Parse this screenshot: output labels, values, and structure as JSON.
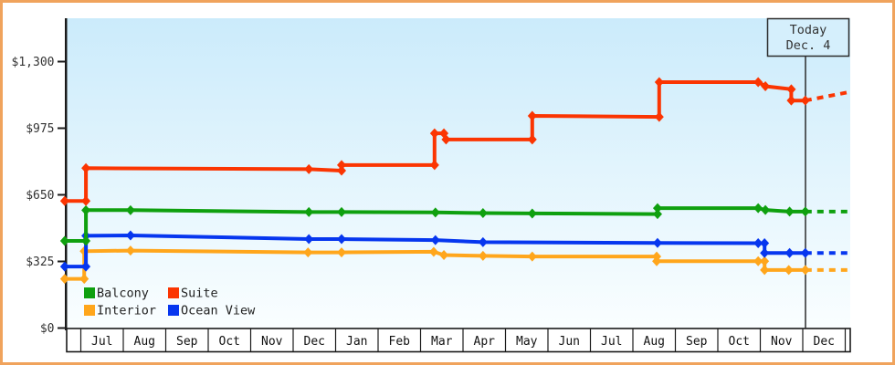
{
  "window": {
    "frame_border_color": "#F0A35C",
    "background_color": "#FFFFFF"
  },
  "chart_data": {
    "type": "line",
    "title": "",
    "description": "Price history step-line chart of cruise cabin categories over 18 months with dashed forecast after today marker",
    "x_axis": {
      "months": [
        "Jul",
        "Aug",
        "Sep",
        "Oct",
        "Nov",
        "Dec",
        "Jan",
        "Feb",
        "Mar",
        "Apr",
        "May",
        "Jun",
        "Jul",
        "Aug",
        "Sep",
        "Oct",
        "Nov",
        "Dec"
      ]
    },
    "y_axis": {
      "ticks": [
        {
          "value": 0,
          "label": "$0"
        },
        {
          "value": 325,
          "label": "$325"
        },
        {
          "value": 650,
          "label": "$650"
        },
        {
          "value": 975,
          "label": "$975"
        },
        {
          "value": 1300,
          "label": "$1,300"
        }
      ],
      "range": [
        0,
        1510
      ],
      "grid": false
    },
    "today": {
      "line1": "Today",
      "line2": "Dec. 4",
      "month_offset": 17.06
    },
    "plot_bg_top": "#CBEBFB",
    "plot_bg_bottom": "#FAFEFF",
    "series": [
      {
        "name": "Interior",
        "color": "#FFA61C",
        "points": [
          [
            -0.38,
            240
          ],
          [
            0.08,
            240
          ],
          [
            0.08,
            375
          ],
          [
            1.17,
            378
          ],
          [
            5.35,
            369
          ],
          [
            6.14,
            369
          ],
          [
            8.31,
            372
          ],
          [
            8.55,
            356
          ],
          [
            9.47,
            352
          ],
          [
            10.63,
            349
          ],
          [
            13.56,
            349
          ],
          [
            13.56,
            326
          ],
          [
            15.95,
            326
          ],
          [
            16.1,
            326
          ],
          [
            16.1,
            283
          ],
          [
            16.67,
            283
          ],
          [
            17.06,
            283
          ]
        ],
        "forecast": [
          [
            17.06,
            283
          ],
          [
            18.06,
            283
          ]
        ]
      },
      {
        "name": "Ocean View",
        "color": "#0636EF",
        "points": [
          [
            -0.38,
            300
          ],
          [
            0.12,
            300
          ],
          [
            0.12,
            450
          ],
          [
            1.17,
            452
          ],
          [
            5.37,
            434
          ],
          [
            6.14,
            434
          ],
          [
            8.35,
            429
          ],
          [
            9.47,
            419
          ],
          [
            13.58,
            415
          ],
          [
            15.95,
            414
          ],
          [
            16.1,
            414
          ],
          [
            16.1,
            366
          ],
          [
            16.69,
            366
          ],
          [
            17.06,
            366
          ]
        ],
        "forecast": [
          [
            17.06,
            366
          ],
          [
            18.06,
            366
          ]
        ]
      },
      {
        "name": "Balcony",
        "color": "#0FA00F",
        "points": [
          [
            -0.38,
            425
          ],
          [
            0.12,
            425
          ],
          [
            0.12,
            575
          ],
          [
            1.17,
            575
          ],
          [
            5.37,
            566
          ],
          [
            6.14,
            566
          ],
          [
            8.35,
            564
          ],
          [
            9.47,
            561
          ],
          [
            10.63,
            559
          ],
          [
            13.58,
            556
          ],
          [
            13.58,
            585
          ],
          [
            15.95,
            585
          ],
          [
            16.12,
            576
          ],
          [
            16.69,
            568
          ],
          [
            17.06,
            568
          ]
        ],
        "forecast": [
          [
            17.06,
            568
          ],
          [
            18.06,
            568
          ]
        ]
      },
      {
        "name": "Suite",
        "color": "#FB3502",
        "points": [
          [
            -0.38,
            620
          ],
          [
            0.12,
            620
          ],
          [
            0.12,
            780
          ],
          [
            5.37,
            775
          ],
          [
            6.14,
            768
          ],
          [
            6.14,
            795
          ],
          [
            8.33,
            795
          ],
          [
            8.33,
            950
          ],
          [
            8.55,
            950
          ],
          [
            8.6,
            920
          ],
          [
            10.63,
            920
          ],
          [
            10.63,
            1035
          ],
          [
            13.62,
            1030
          ],
          [
            13.62,
            1200
          ],
          [
            15.95,
            1200
          ],
          [
            16.12,
            1180
          ],
          [
            16.73,
            1165
          ],
          [
            16.73,
            1110
          ],
          [
            17.06,
            1110
          ]
        ],
        "forecast": [
          [
            17.06,
            1110
          ],
          [
            18.06,
            1150
          ]
        ]
      }
    ]
  },
  "legend": {
    "items": [
      {
        "label": "Balcony",
        "color": "#0FA00F"
      },
      {
        "label": "Suite",
        "color": "#FB3502"
      },
      {
        "label": "Interior",
        "color": "#FFA61C"
      },
      {
        "label": "Ocean View",
        "color": "#0636EF"
      }
    ]
  }
}
